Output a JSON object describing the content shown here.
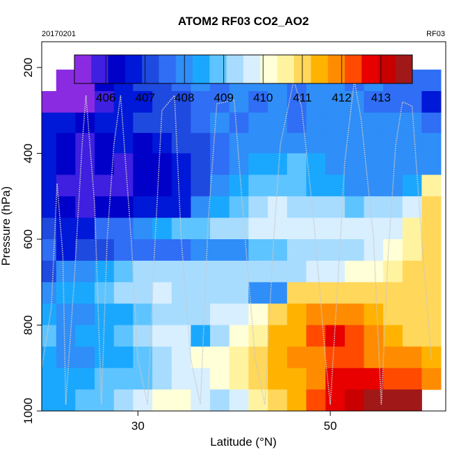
{
  "chart_data": {
    "type": "heatmap",
    "title": "ATOM2 RF03 CO2_AO2",
    "date_label": "20170201",
    "flight_label": "RF03",
    "xlabel": "Latitude (°N)",
    "ylabel": "Pressure (hPa)",
    "xlim": [
      20,
      62
    ],
    "ylim": [
      1000,
      140
    ],
    "xticks": [
      30,
      50
    ],
    "yticks": [
      200,
      400,
      600,
      800,
      1000
    ],
    "colorbar": {
      "range": [
        405.2,
        413.8
      ],
      "ticks": [
        406,
        407,
        408,
        409,
        410,
        411,
        412,
        413
      ],
      "colors": [
        "#8a2be2",
        "#3f1fe0",
        "#0000c8",
        "#0018d8",
        "#1f4ae0",
        "#2f6ef5",
        "#2f8ef8",
        "#1aa8ff",
        "#5ec4ff",
        "#a7dcff",
        "#d8efff",
        "#ffffd8",
        "#fff3a0",
        "#ffd75a",
        "#ffb300",
        "#ff8c00",
        "#ff4a00",
        "#e80000",
        "#c80000",
        "#a01818"
      ]
    },
    "pressure_levels": [
      230,
      280,
      330,
      375,
      425,
      475,
      525,
      575,
      625,
      675,
      725,
      775,
      825,
      875,
      925,
      975
    ],
    "latitude_bins": [
      20.5,
      22.5,
      24.5,
      26.5,
      28.5,
      30.5,
      32.5,
      34.5,
      36.5,
      38.5,
      40.5,
      42.5,
      44.5,
      46.5,
      48.5,
      50.5,
      52.5,
      54.5,
      56.5,
      58.5,
      60.5
    ],
    "co2_grid": [
      [
        null,
        405.4,
        405.5,
        406.1,
        406.8,
        407.2,
        407.0,
        407.6,
        407.8,
        407.7,
        407.9,
        407.8,
        407.8,
        407.7,
        408.0,
        407.8,
        407.7,
        407.9,
        407.7,
        407.6,
        407.6
      ],
      [
        405.3,
        405.4,
        405.6,
        406.0,
        406.6,
        406.9,
        407.1,
        407.3,
        407.5,
        407.6,
        407.9,
        407.6,
        407.8,
        407.7,
        407.8,
        407.8,
        407.9,
        407.7,
        407.6,
        407.4,
        406.8
      ],
      [
        406.8,
        406.7,
        406.3,
        406.6,
        406.9,
        407.0,
        407.1,
        407.3,
        407.6,
        407.8,
        407.7,
        407.9,
        408.0,
        407.7,
        407.9,
        407.8,
        407.8,
        407.8,
        407.9,
        407.8,
        407.6
      ],
      [
        406.8,
        406.4,
        406.0,
        406.4,
        406.5,
        406.4,
        406.5,
        407.0,
        407.2,
        407.7,
        407.8,
        408.0,
        408.2,
        407.8,
        408.0,
        408.0,
        408.1,
        407.9,
        408.0,
        407.9,
        408.1
      ],
      [
        406.9,
        406.2,
        405.9,
        406.1,
        406.0,
        406.2,
        406.1,
        406.7,
        407.2,
        407.7,
        408.0,
        408.3,
        408.6,
        408.9,
        408.3,
        408.1,
        408.1,
        408.0,
        408.2,
        408.0,
        408.2
      ],
      [
        406.9,
        406.0,
        405.8,
        406.0,
        406.0,
        406.1,
        406.2,
        406.5,
        407.2,
        407.9,
        408.4,
        408.8,
        408.9,
        408.8,
        408.5,
        408.4,
        408.2,
        408.1,
        408.2,
        408.3,
        410.4
      ],
      [
        406.8,
        406.1,
        406.0,
        406.2,
        406.4,
        406.8,
        406.9,
        406.9,
        407.9,
        408.4,
        408.8,
        409.2,
        409.5,
        409.4,
        409.2,
        409.2,
        409.0,
        409.2,
        409.4,
        409.6,
        410.8
      ],
      [
        407.3,
        406.8,
        406.8,
        407.4,
        407.6,
        408.1,
        408.3,
        408.7,
        409.0,
        409.2,
        409.4,
        409.6,
        409.8,
        409.7,
        409.8,
        409.7,
        409.6,
        409.6,
        409.8,
        410.4,
        410.9
      ],
      [
        407.4,
        406.9,
        407.0,
        407.3,
        407.5,
        407.4,
        407.6,
        407.7,
        407.9,
        408.0,
        408.2,
        408.8,
        409.0,
        409.1,
        409.4,
        409.2,
        409.3,
        409.6,
        410.2,
        410.6,
        411.0
      ],
      [
        407.0,
        407.8,
        408.0,
        408.4,
        408.9,
        409.3,
        409.3,
        409.4,
        409.3,
        409.2,
        409.2,
        409.2,
        409.4,
        409.4,
        409.6,
        409.8,
        410.1,
        410.3,
        410.4,
        410.9,
        411.0
      ],
      [
        408.2,
        408.4,
        408.6,
        408.9,
        409.2,
        409.3,
        409.5,
        409.4,
        409.3,
        409.2,
        409.3,
        408.1,
        408.0,
        410.9,
        410.8,
        411.0,
        411.1,
        411.2,
        410.9,
        410.9,
        411.2
      ],
      [
        408.4,
        408.0,
        408.2,
        408.4,
        408.6,
        408.9,
        409.1,
        409.2,
        409.3,
        409.6,
        409.9,
        410.3,
        411.2,
        411.5,
        411.7,
        411.8,
        411.7,
        411.4,
        411.0,
        411.1,
        411.2
      ],
      [
        408.7,
        408.2,
        408.3,
        408.6,
        408.8,
        409.3,
        409.5,
        409.9,
        408.5,
        409.4,
        410.2,
        410.7,
        411.4,
        411.6,
        412.1,
        412.6,
        412.4,
        411.7,
        411.3,
        411.0,
        411.1
      ],
      [
        408.6,
        408.0,
        408.1,
        408.4,
        408.6,
        409.0,
        409.4,
        409.8,
        410.2,
        410.3,
        410.5,
        410.9,
        411.3,
        411.7,
        412.0,
        412.4,
        412.2,
        411.8,
        411.7,
        411.7,
        411.6
      ],
      [
        408.5,
        408.4,
        408.5,
        408.7,
        408.9,
        409.0,
        409.3,
        409.6,
        409.9,
        410.2,
        410.7,
        411.1,
        411.3,
        411.6,
        412.0,
        412.6,
        412.9,
        412.8,
        412.4,
        412.1,
        411.9
      ],
      [
        408.4,
        408.6,
        408.8,
        409.0,
        409.3,
        409.6,
        410.0,
        410.1,
        409.8,
        409.4,
        409.9,
        410.4,
        411.0,
        411.6,
        412.3,
        412.9,
        413.2,
        413.4,
        413.4,
        413.5,
        null
      ]
    ],
    "flight_track": [
      [
        20,
        900
      ],
      [
        21.0,
        760
      ],
      [
        21.6,
        470
      ],
      [
        22.2,
        640
      ],
      [
        22.5,
        985
      ],
      [
        23.4,
        690
      ],
      [
        24.2,
        380
      ],
      [
        24.6,
        265
      ],
      [
        25.5,
        520
      ],
      [
        26.2,
        985
      ],
      [
        26.8,
        600
      ],
      [
        27.5,
        380
      ],
      [
        28.2,
        265
      ],
      [
        29.3,
        600
      ],
      [
        30.0,
        880
      ],
      [
        31.0,
        985
      ],
      [
        31.7,
        640
      ],
      [
        32.5,
        300
      ],
      [
        33.8,
        265
      ],
      [
        34.5,
        600
      ],
      [
        35.5,
        880
      ],
      [
        36.5,
        985
      ],
      [
        37.3,
        560
      ],
      [
        38.2,
        285
      ],
      [
        40.0,
        275
      ],
      [
        41.0,
        560
      ],
      [
        42.2,
        880
      ],
      [
        43.2,
        985
      ],
      [
        44.0,
        640
      ],
      [
        44.8,
        380
      ],
      [
        46.2,
        230
      ],
      [
        47.0,
        290
      ],
      [
        48.3,
        560
      ],
      [
        49.5,
        880
      ],
      [
        50.0,
        985
      ],
      [
        51.0,
        620
      ],
      [
        51.5,
        420
      ],
      [
        52.5,
        230
      ],
      [
        53.2,
        320
      ],
      [
        54.5,
        600
      ],
      [
        55.3,
        985
      ],
      [
        56.0,
        640
      ],
      [
        56.8,
        380
      ],
      [
        57.5,
        280
      ],
      [
        58.5,
        290
      ],
      [
        59.5,
        600
      ],
      [
        60.5,
        880
      ]
    ]
  }
}
